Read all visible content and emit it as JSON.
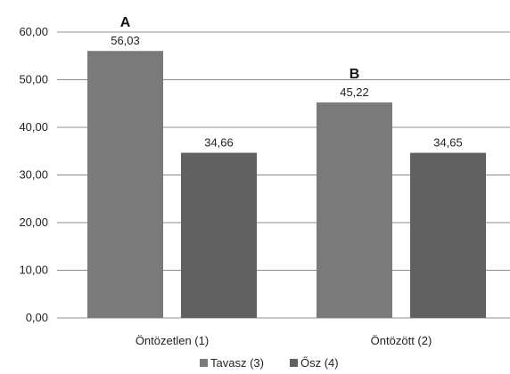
{
  "chart_data": {
    "type": "bar",
    "categories": [
      "Öntözetlen (1)",
      "Öntözött (2)"
    ],
    "series": [
      {
        "name": "Tavasz (3)",
        "values": [
          56.03,
          45.22
        ],
        "labels": [
          "56,03",
          "45,22"
        ],
        "color": "#7a7a7a"
      },
      {
        "name": "Ősz (4)",
        "values": [
          34.66,
          34.65
        ],
        "labels": [
          "34,66",
          "34,65"
        ],
        "color": "#616161"
      }
    ],
    "ylim": [
      0,
      60
    ],
    "yticks": [
      0,
      10,
      20,
      30,
      40,
      50,
      60
    ],
    "ytick_labels": [
      "0,00",
      "10,00",
      "20,00",
      "30,00",
      "40,00",
      "50,00",
      "60,00"
    ],
    "annotations": [
      "A",
      "B"
    ],
    "grid": true,
    "legend_position": "bottom",
    "title": "",
    "xlabel": "",
    "ylabel": ""
  }
}
